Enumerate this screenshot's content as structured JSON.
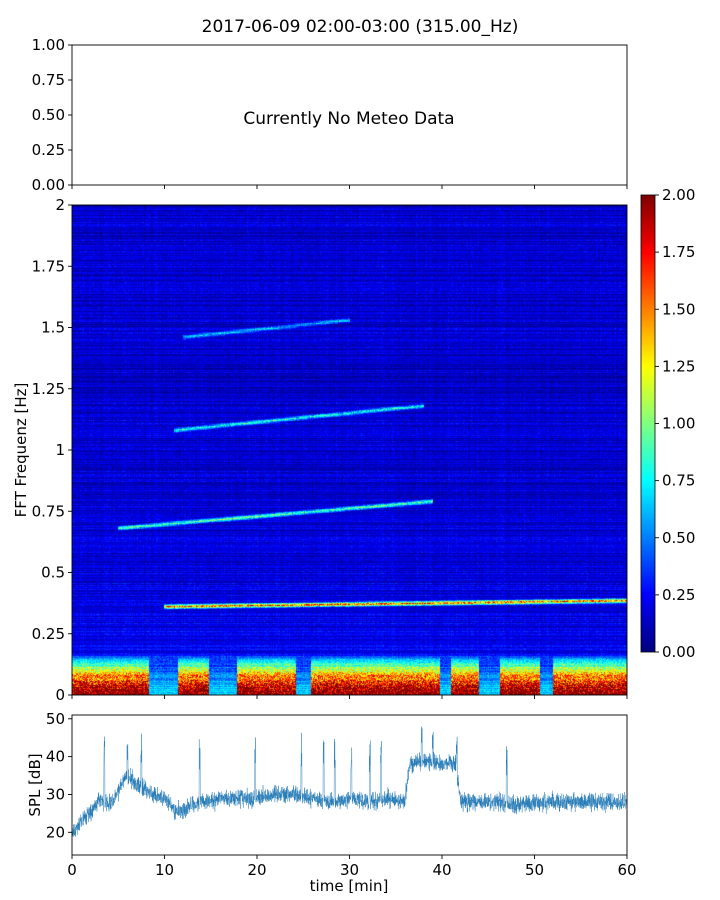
{
  "figure": {
    "title": "2017-06-09 02:00-03:00 (315.00_Hz)"
  },
  "chart_data": [
    {
      "type": "line",
      "panel": "meteo",
      "annotation": "Currently No Meteo Data",
      "xlim": [
        0,
        60
      ],
      "ylim": [
        0,
        1
      ],
      "yticks": [
        "0.00",
        "0.25",
        "0.50",
        "0.75",
        "1.00"
      ],
      "xticks_shown": false,
      "series": []
    },
    {
      "type": "heatmap",
      "panel": "fft-spectrogram",
      "ylabel": "FFT Frequenz [Hz]",
      "xlim": [
        0,
        60
      ],
      "ylim": [
        0,
        2
      ],
      "yticks": [
        "0",
        "0.25",
        "0.5",
        "0.75",
        "1",
        "1.25",
        "1.5",
        "1.75",
        "2"
      ],
      "colormap": "jet",
      "colorbar": {
        "range": [
          0,
          2
        ],
        "ticks": [
          "0.00",
          "0.25",
          "0.50",
          "0.75",
          "1.00",
          "1.25",
          "1.50",
          "1.75",
          "2.00"
        ]
      },
      "background_level": 0.15,
      "features": [
        {
          "name": "low-frequency band",
          "t": [
            0,
            60
          ],
          "f": [
            0,
            0.1
          ],
          "level": 2.0,
          "gaps_min": [
            [
              8.3,
              11.5
            ],
            [
              14.8,
              17.8
            ],
            [
              24.2,
              25.8
            ],
            [
              39.8,
              41.0
            ],
            [
              44.0,
              46.3
            ],
            [
              50.6,
              52.0
            ]
          ]
        },
        {
          "name": "0.37 Hz tone",
          "t": [
            10,
            60
          ],
          "f_start": 0.36,
          "f_end": 0.385,
          "level": 1.6
        },
        {
          "name": "0.72 Hz tone",
          "t": [
            5,
            39
          ],
          "f_start": 0.68,
          "f_end": 0.79,
          "level": 0.9
        },
        {
          "name": "1.1 Hz tone",
          "t": [
            11,
            38
          ],
          "f_start": 1.08,
          "f_end": 1.18,
          "level": 0.75
        },
        {
          "name": "1.5 Hz tone",
          "t": [
            12,
            30
          ],
          "f_start": 1.46,
          "f_end": 1.53,
          "level": 0.55
        }
      ]
    },
    {
      "type": "line",
      "panel": "spl",
      "xlabel": "time [min]",
      "ylabel": "SPL [dB]",
      "xlim": [
        0,
        60
      ],
      "ylim": [
        14,
        51
      ],
      "xticks": [
        "0",
        "10",
        "20",
        "30",
        "40",
        "50",
        "60"
      ],
      "yticks": [
        "20",
        "30",
        "40",
        "50"
      ],
      "color": "#1f77b4",
      "series": [
        {
          "x": [
            0,
            1,
            2,
            3,
            4,
            5,
            6,
            7,
            8,
            9,
            10,
            11,
            12,
            14,
            16,
            18,
            20,
            22,
            24,
            26,
            28,
            30,
            32,
            34,
            36,
            36.5,
            38,
            40,
            41.5,
            42,
            44,
            46,
            48,
            50,
            52,
            54,
            56,
            58,
            60
          ],
          "y": [
            20,
            23,
            25,
            29,
            27,
            31,
            35,
            33,
            31,
            30,
            29,
            26,
            26,
            28,
            29,
            29,
            29,
            30,
            30,
            29,
            28,
            29,
            28,
            29,
            28,
            38,
            39,
            38,
            38,
            28,
            28,
            28,
            27,
            28,
            28,
            28,
            28,
            28,
            28
          ],
          "noise": 2.2
        }
      ],
      "spikes": [
        {
          "x": 3.5,
          "y": 46
        },
        {
          "x": 6.0,
          "y": 45
        },
        {
          "x": 7.5,
          "y": 47
        },
        {
          "x": 13.8,
          "y": 46
        },
        {
          "x": 19.8,
          "y": 47
        },
        {
          "x": 24.8,
          "y": 47
        },
        {
          "x": 27.2,
          "y": 46
        },
        {
          "x": 28.4,
          "y": 45
        },
        {
          "x": 30.2,
          "y": 45
        },
        {
          "x": 32.2,
          "y": 46
        },
        {
          "x": 33.4,
          "y": 46
        },
        {
          "x": 37.8,
          "y": 48
        },
        {
          "x": 39.0,
          "y": 47
        },
        {
          "x": 41.6,
          "y": 46
        },
        {
          "x": 47.0,
          "y": 45
        }
      ]
    }
  ]
}
